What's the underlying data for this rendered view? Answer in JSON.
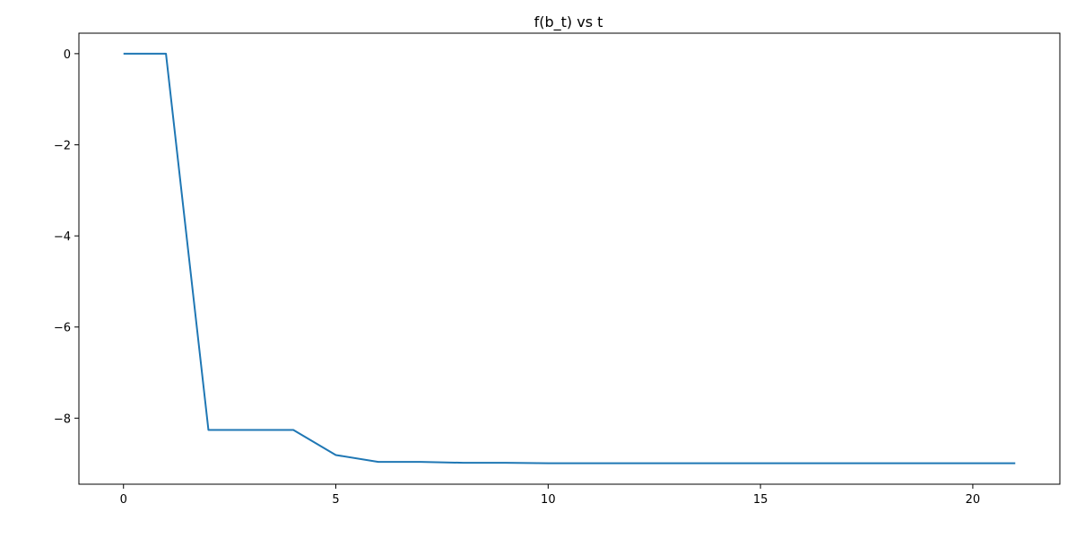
{
  "chart_data": {
    "type": "line",
    "title": "f(b_t) vs t",
    "xlabel": "",
    "ylabel": "",
    "xlim": [
      -1.05,
      22.05
    ],
    "ylim": [
      -9.45,
      0.45
    ],
    "xticks": [
      0,
      5,
      10,
      15,
      20
    ],
    "yticks": [
      0,
      -2,
      -4,
      -6,
      -8
    ],
    "xtick_labels": [
      "0",
      "5",
      "10",
      "15",
      "20"
    ],
    "ytick_labels": [
      "0",
      "−2",
      "−4",
      "−6",
      "−8"
    ],
    "grid": false,
    "legend": "none",
    "series": [
      {
        "color": "#1f77b4",
        "x": [
          0,
          1,
          2,
          3,
          4,
          5,
          6,
          7,
          8,
          9,
          10,
          11,
          12,
          13,
          14,
          15,
          16,
          17,
          18,
          19,
          20,
          21
        ],
        "y": [
          0,
          0,
          -8.26,
          -8.26,
          -8.26,
          -8.81,
          -8.96,
          -8.96,
          -8.98,
          -8.98,
          -8.99,
          -8.99,
          -8.99,
          -8.99,
          -8.99,
          -8.99,
          -8.99,
          -8.99,
          -8.99,
          -8.99,
          -8.99,
          -8.99
        ]
      }
    ]
  }
}
